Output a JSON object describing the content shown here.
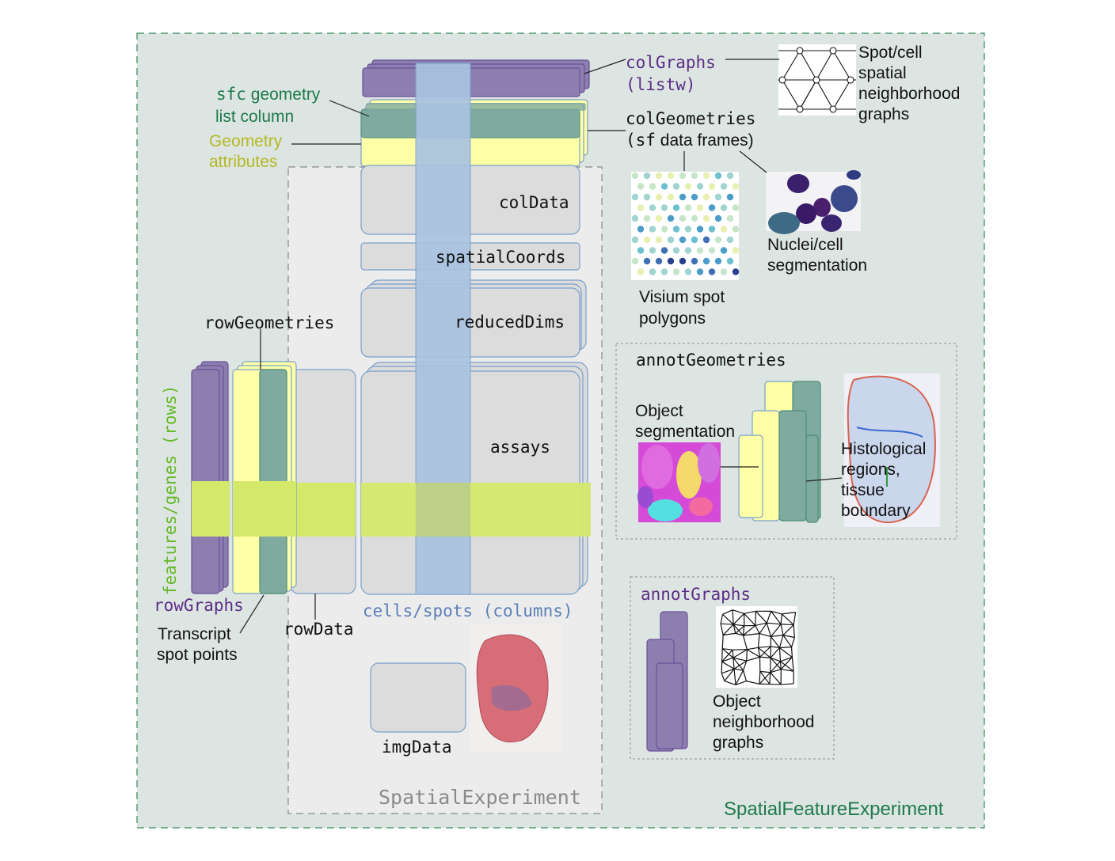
{
  "labels": {
    "colgraphs": "colGraphs",
    "listw": "(listw)",
    "spot_graph_caption": [
      "Spot/cell",
      "spatial",
      "neighborhood",
      "graphs"
    ],
    "sfc_line1_mono": "sfc",
    "sfc_line1_rest": " geometry",
    "sfc_line2": "list column",
    "geom_attr_line1": "Geometry",
    "geom_attr_line2": "attributes",
    "colgeometries": "colGeometries",
    "sf_mono": "(sf",
    "sf_rest": " data frames)",
    "coldata": "colData",
    "spatialcoords": "spatialCoords",
    "reduceddims": "reducedDims",
    "assays": "assays",
    "rowgeometries": "rowGeometries",
    "features_rows": "features/genes (rows)",
    "rowgraphs": "rowGraphs",
    "transcript_line1": "Transcript",
    "transcript_line2": "spot points",
    "rowdata": "rowData",
    "cells_spots": "cells/spots (columns)",
    "imgdata": "imgData",
    "spatialexperiment": "SpatialExperiment",
    "sfe": "SpatialFeatureExperiment",
    "visium_line1": "Visium spot",
    "visium_line2": "polygons",
    "nuclei_line1": "Nuclei/cell",
    "nuclei_line2": "segmentation",
    "annotgeometries": "annotGeometries",
    "objseg_line1": "Object",
    "objseg_line2": "segmentation",
    "histo": [
      "Histological",
      "regions,",
      "tissue",
      "boundary"
    ],
    "annotgraphs": "annotGraphs",
    "objneigh": [
      "Object",
      "neighborhood",
      "graphs"
    ]
  },
  "colors": {
    "sfe_background": "#dde5e2",
    "se_background": "#ececec",
    "assay_box": "#dcdcdc",
    "column_highlight": "#a9c3e0",
    "row_highlight": "#d4e86a",
    "graph_purple": "#8c7fb0",
    "geometry_teal": "#7eaaa0",
    "attribute_yellow": "#ffffa8"
  }
}
